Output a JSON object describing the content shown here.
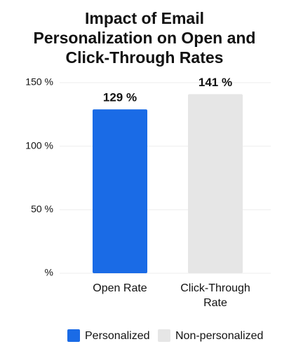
{
  "chart_data": {
    "type": "bar",
    "title": "Impact of Email Personalization on Open and Click-Through Rates",
    "categories": [
      "Open Rate",
      "Click-Through Rate"
    ],
    "series": [
      {
        "name": "Personalized",
        "color": "#1a6be6",
        "values": [
          129,
          null
        ],
        "value_labels": [
          "129 %",
          null
        ]
      },
      {
        "name": "Non-personalized",
        "color": "#e6e6e6",
        "values": [
          null,
          141
        ],
        "value_labels": [
          null,
          "141 %"
        ]
      }
    ],
    "ylim": [
      0,
      150
    ],
    "yticks": [
      {
        "value": 0,
        "label": "%"
      },
      {
        "value": 50,
        "label": "50 %"
      },
      {
        "value": 100,
        "label": "100 %"
      },
      {
        "value": 150,
        "label": "150 %"
      }
    ],
    "grid": true,
    "legend": "bottom"
  }
}
